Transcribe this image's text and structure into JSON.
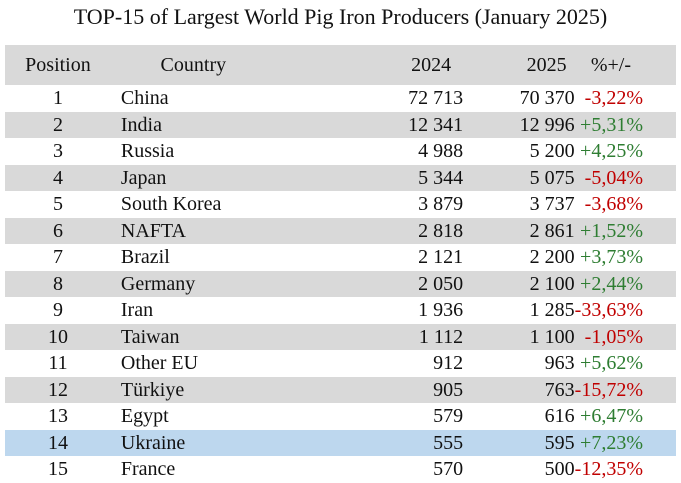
{
  "title": "TOP-15 of Largest World Pig Iron Producers (January 2025)",
  "colors": {
    "negative": "#c00000",
    "positive": "#2e7d32",
    "stripe": "#d9d9d9",
    "highlight": "#bdd7ee"
  },
  "chart_data": {
    "type": "table",
    "columns": [
      "Position",
      "Country",
      "2024",
      "2025",
      "%+/-"
    ],
    "rows": [
      [
        "1",
        "China",
        "72 713",
        "70 370",
        "-3,22%"
      ],
      [
        "2",
        "India",
        "12 341",
        "12 996",
        "+5,31%"
      ],
      [
        "3",
        "Russia",
        "4 988",
        "5 200",
        "+4,25%"
      ],
      [
        "4",
        "Japan",
        "5 344",
        "5 075",
        "-5,04%"
      ],
      [
        "5",
        "South Korea",
        "3 879",
        "3 737",
        "-3,68%"
      ],
      [
        "6",
        "NAFTA",
        "2 818",
        "2 861",
        "+1,52%"
      ],
      [
        "7",
        "Brazil",
        "2 121",
        "2 200",
        "+3,73%"
      ],
      [
        "8",
        "Germany",
        "2 050",
        "2 100",
        "+2,44%"
      ],
      [
        "9",
        "Iran",
        "1 936",
        "1 285",
        "-33,63%"
      ],
      [
        "10",
        "Taiwan",
        "1 112",
        "1 100",
        "-1,05%"
      ],
      [
        "11",
        "Other EU",
        "912",
        "963",
        "+5,62%"
      ],
      [
        "12",
        "Türkiye",
        "905",
        "763",
        "-15,72%"
      ],
      [
        "13",
        "Egypt",
        "579",
        "616",
        "+6,47%"
      ],
      [
        "14",
        "Ukraine",
        "555",
        "595",
        "+7,23%"
      ],
      [
        "15",
        "France",
        "570",
        "500",
        "-12,35%"
      ]
    ],
    "highlighted_row": "Ukraine"
  }
}
